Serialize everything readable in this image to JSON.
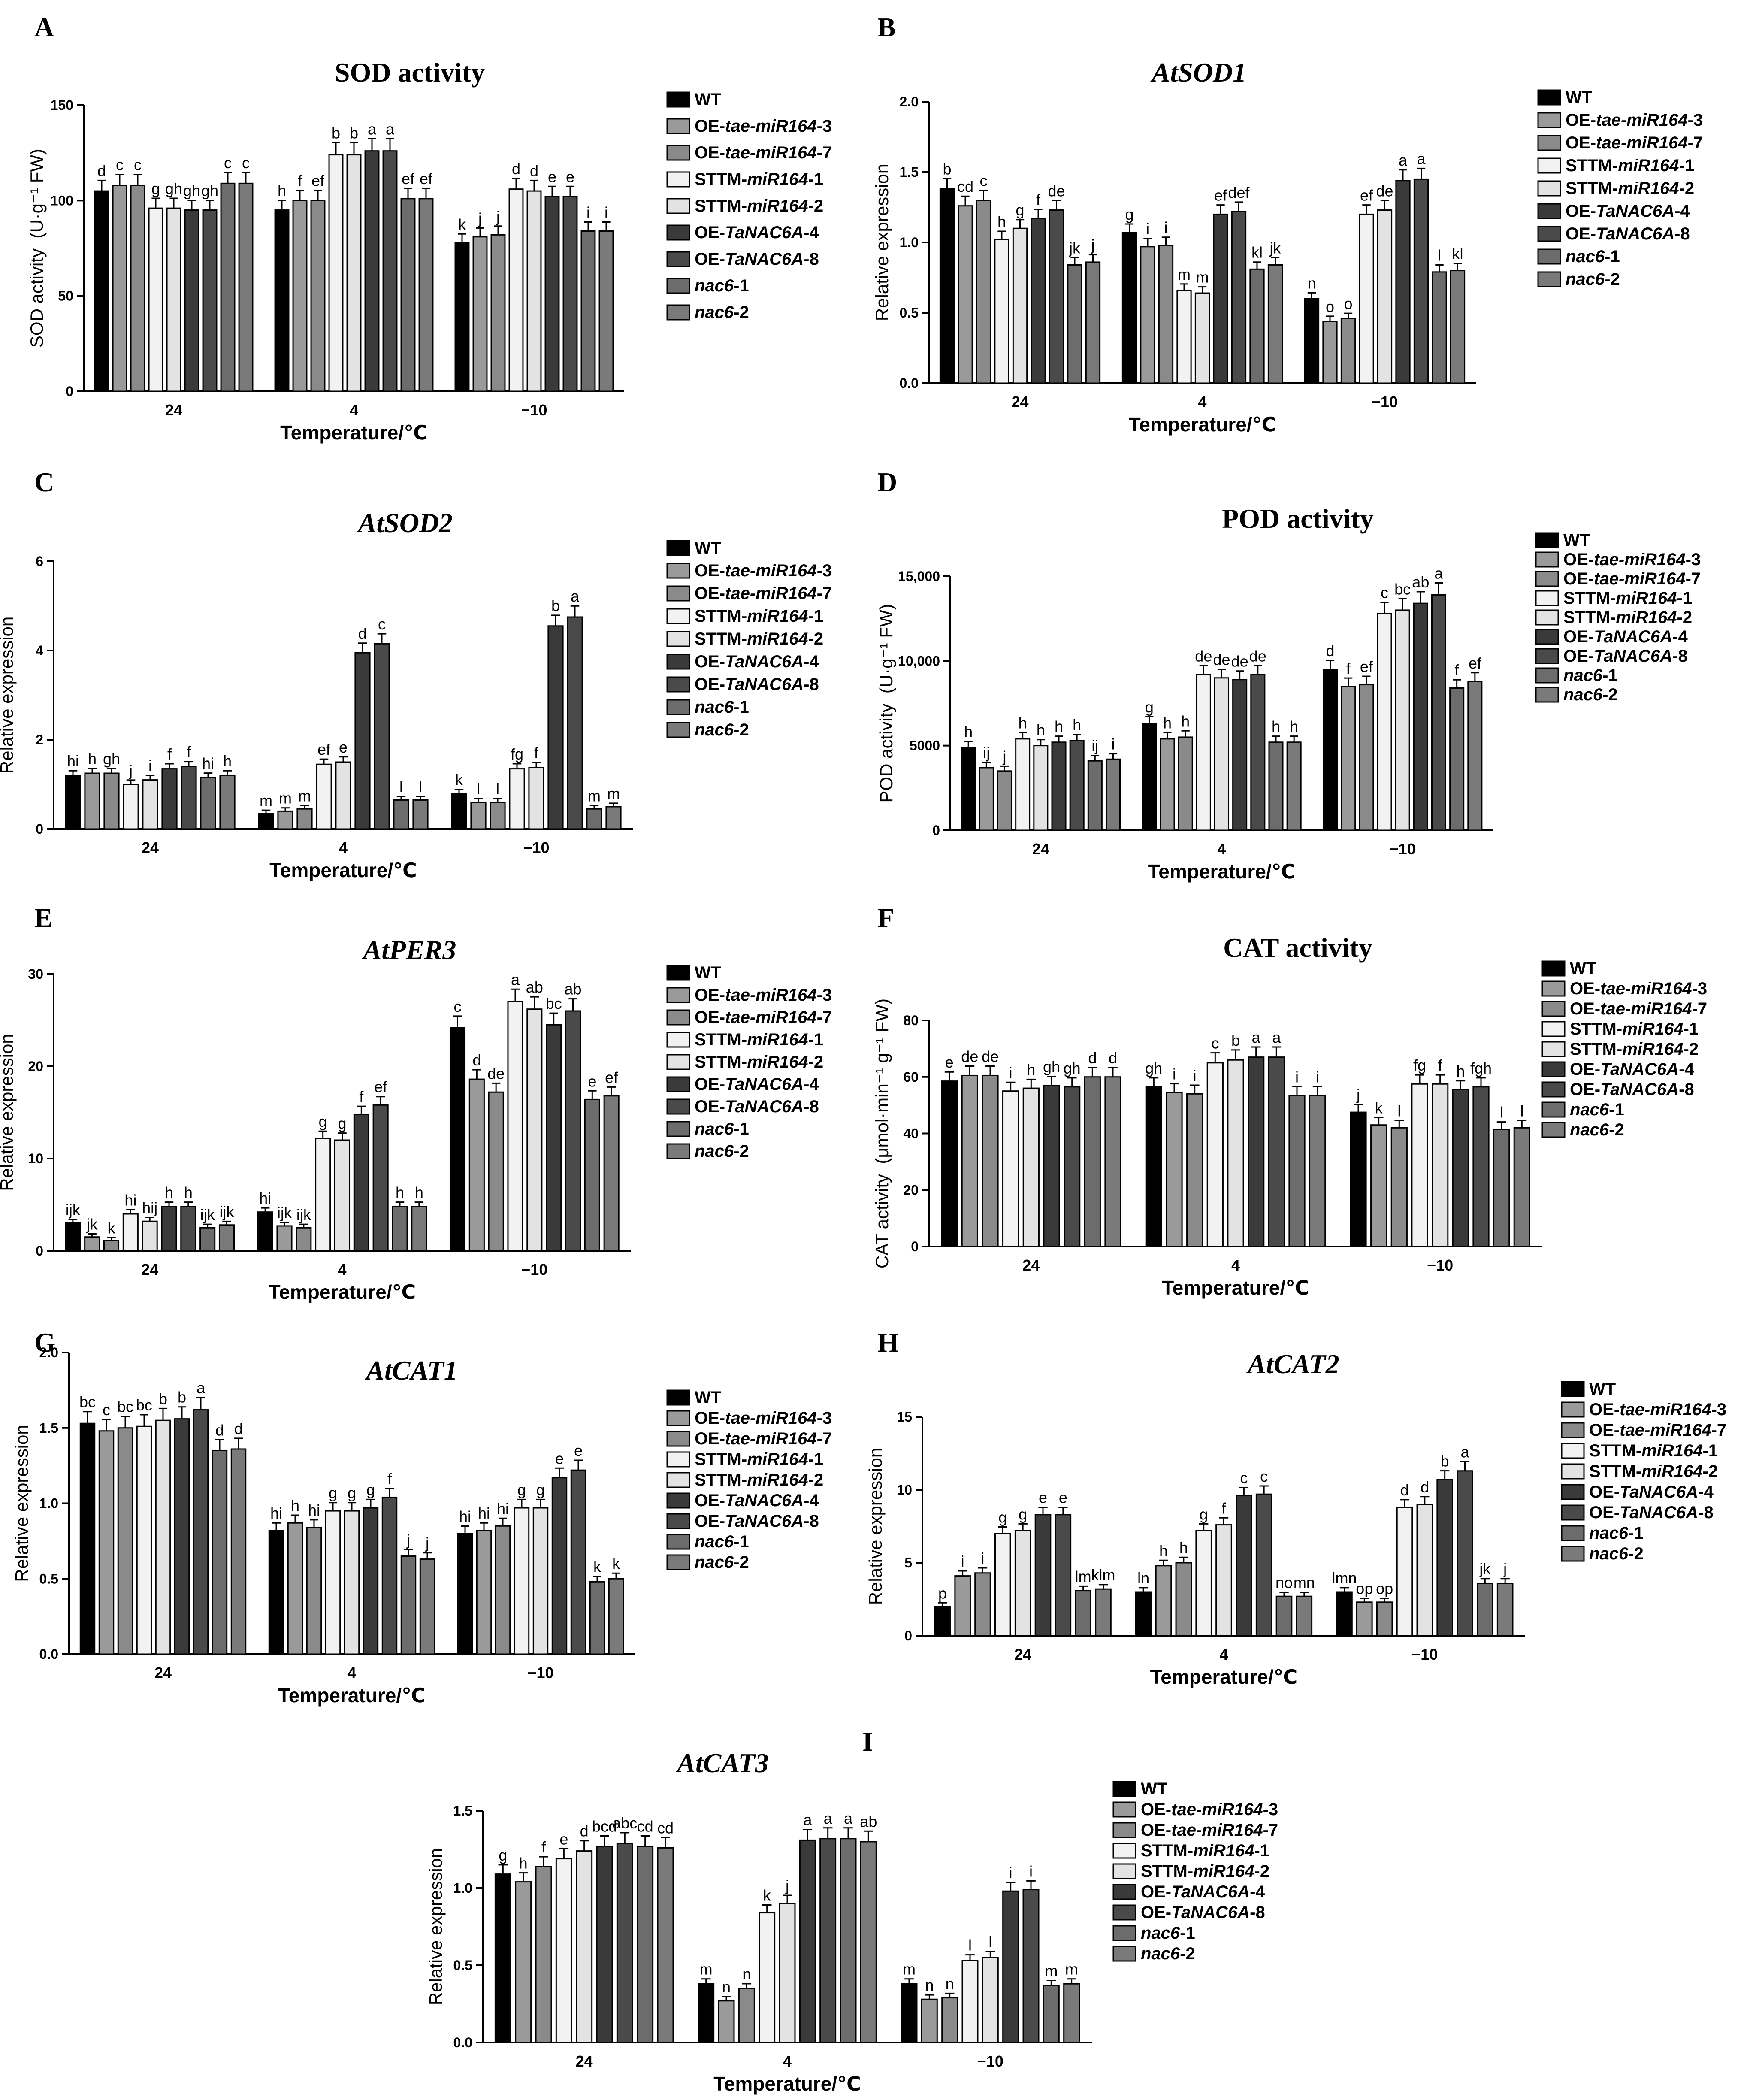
{
  "legend": {
    "items": [
      {
        "parts": [
          {
            "t": "WT",
            "i": false
          }
        ],
        "color": "#000000"
      },
      {
        "parts": [
          {
            "t": "OE-",
            "i": false
          },
          {
            "t": "tae-miR164",
            "i": true
          },
          {
            "t": "-3",
            "i": false
          }
        ],
        "color": "#9a9a9a"
      },
      {
        "parts": [
          {
            "t": "OE-",
            "i": false
          },
          {
            "t": "tae-miR164",
            "i": true
          },
          {
            "t": "-7",
            "i": false
          }
        ],
        "color": "#8a8a8a"
      },
      {
        "parts": [
          {
            "t": "STTM-",
            "i": false
          },
          {
            "t": "miR164",
            "i": true
          },
          {
            "t": "-1",
            "i": false
          }
        ],
        "color": "#f2f2f2"
      },
      {
        "parts": [
          {
            "t": "STTM-",
            "i": false
          },
          {
            "t": "miR164",
            "i": true
          },
          {
            "t": "-2",
            "i": false
          }
        ],
        "color": "#e3e3e3"
      },
      {
        "parts": [
          {
            "t": "OE-",
            "i": false
          },
          {
            "t": "TaNAC6A",
            "i": true
          },
          {
            "t": "-4",
            "i": false
          }
        ],
        "color": "#3a3a3a"
      },
      {
        "parts": [
          {
            "t": "OE-",
            "i": false
          },
          {
            "t": "TaNAC6A",
            "i": true
          },
          {
            "t": "-8",
            "i": false
          }
        ],
        "color": "#4a4a4a"
      },
      {
        "parts": [
          {
            "t": "nac6",
            "i": true
          },
          {
            "t": "-1",
            "i": false
          }
        ],
        "color": "#6c6c6c"
      },
      {
        "parts": [
          {
            "t": "nac6",
            "i": true
          },
          {
            "t": "-2",
            "i": false
          }
        ],
        "color": "#7a7a7a"
      }
    ]
  },
  "chart_data": [
    {
      "panel": "A",
      "type": "bar",
      "title": "SOD activity",
      "title_italic": false,
      "ylabel": "SOD activity  (U·g⁻¹ FW)",
      "xlabel": "Temperature/℃",
      "ylim": [
        0,
        150
      ],
      "yticks": [
        "0",
        "50",
        "100",
        "150"
      ],
      "categories": [
        "24",
        "4",
        "−10"
      ],
      "values": [
        [
          105,
          108,
          108,
          96,
          96,
          95,
          95,
          109,
          109
        ],
        [
          95,
          100,
          100,
          124,
          124,
          126,
          126,
          101,
          101
        ],
        [
          78,
          81,
          82,
          106,
          105,
          102,
          102,
          84,
          84
        ]
      ],
      "letters": [
        [
          "d",
          "c",
          "c",
          "g",
          "gh",
          "gh",
          "gh",
          "c",
          "c"
        ],
        [
          "h",
          "f",
          "ef",
          "b",
          "b",
          "a",
          "a",
          "ef",
          "ef"
        ],
        [
          "k",
          "j",
          "j",
          "d",
          "d",
          "e",
          "e",
          "i",
          "i"
        ]
      ]
    },
    {
      "panel": "B",
      "type": "bar",
      "title": "AtSOD1",
      "title_italic": true,
      "ylabel": "Relative expression",
      "xlabel": "Temperature/℃",
      "ylim": [
        0,
        2
      ],
      "yticks": [
        "0.0",
        "0.5",
        "1.0",
        "1.5",
        "2.0"
      ],
      "categories": [
        "24",
        "4",
        "−10"
      ],
      "values": [
        [
          1.38,
          1.26,
          1.3,
          1.02,
          1.1,
          1.17,
          1.23,
          0.84,
          0.86
        ],
        [
          1.07,
          0.97,
          0.98,
          0.66,
          0.64,
          1.2,
          1.22,
          0.81,
          0.84
        ],
        [
          0.6,
          0.44,
          0.46,
          1.2,
          1.23,
          1.44,
          1.45,
          0.79,
          0.8
        ]
      ],
      "letters": [
        [
          "b",
          "cd",
          "c",
          "h",
          "g",
          "f",
          "de",
          "jk",
          "j"
        ],
        [
          "g",
          "i",
          "i",
          "m",
          "m",
          "ef",
          "def",
          "kl",
          "jk"
        ],
        [
          "n",
          "o",
          "o",
          "ef",
          "de",
          "a",
          "a",
          "l",
          "kl"
        ]
      ]
    },
    {
      "panel": "C",
      "type": "bar",
      "title": "AtSOD2",
      "title_italic": true,
      "ylabel": "Relative expression",
      "xlabel": "Temperature/℃",
      "ylim": [
        0,
        6
      ],
      "yticks": [
        "0",
        "2",
        "4",
        "6"
      ],
      "categories": [
        "24",
        "4",
        "−10"
      ],
      "values": [
        [
          1.2,
          1.25,
          1.25,
          1.0,
          1.1,
          1.35,
          1.4,
          1.15,
          1.2
        ],
        [
          0.35,
          0.4,
          0.45,
          1.45,
          1.5,
          3.95,
          4.15,
          0.65,
          0.65
        ],
        [
          0.8,
          0.6,
          0.6,
          1.35,
          1.38,
          4.55,
          4.75,
          0.45,
          0.5
        ]
      ],
      "letters": [
        [
          "hi",
          "h",
          "gh",
          "j",
          "i",
          "f",
          "f",
          "hi",
          "h"
        ],
        [
          "m",
          "m",
          "m",
          "ef",
          "e",
          "d",
          "c",
          "l",
          "l"
        ],
        [
          "k",
          "l",
          "l",
          "fg",
          "f",
          "b",
          "a",
          "m",
          "m"
        ]
      ]
    },
    {
      "panel": "D",
      "type": "bar",
      "title": "POD activity",
      "title_italic": false,
      "ylabel": "POD activity  (U·g⁻¹ FW)",
      "xlabel": "Temperature/℃",
      "ylim": [
        0,
        15000
      ],
      "yticks": [
        "0",
        "5000",
        "10,000",
        "15,000"
      ],
      "categories": [
        "24",
        "4",
        "−10"
      ],
      "values": [
        [
          4900,
          3700,
          3500,
          5400,
          5000,
          5200,
          5300,
          4100,
          4200
        ],
        [
          6300,
          5400,
          5500,
          9200,
          9000,
          8900,
          9200,
          5200,
          5200
        ],
        [
          9500,
          8500,
          8600,
          12800,
          13000,
          13400,
          13900,
          8400,
          8800
        ]
      ],
      "letters": [
        [
          "h",
          "ij",
          "j",
          "h",
          "h",
          "h",
          "h",
          "ij",
          "i"
        ],
        [
          "g",
          "h",
          "h",
          "de",
          "de",
          "de",
          "de",
          "h",
          "h"
        ],
        [
          "d",
          "f",
          "ef",
          "c",
          "bc",
          "ab",
          "a",
          "f",
          "ef"
        ]
      ]
    },
    {
      "panel": "E",
      "type": "bar",
      "title": "AtPER3",
      "title_italic": true,
      "ylabel": "Relative expression",
      "xlabel": "Temperature/℃",
      "ylim": [
        0,
        30
      ],
      "yticks": [
        "0",
        "10",
        "20",
        "30"
      ],
      "categories": [
        "24",
        "4",
        "−10"
      ],
      "values": [
        [
          3.0,
          1.5,
          1.1,
          4.0,
          3.2,
          4.8,
          4.8,
          2.5,
          2.8
        ],
        [
          4.2,
          2.7,
          2.5,
          12.2,
          12.0,
          14.8,
          15.8,
          4.8,
          4.8
        ],
        [
          24.2,
          18.6,
          17.2,
          27.0,
          26.2,
          24.5,
          26.0,
          16.4,
          16.8
        ]
      ],
      "letters": [
        [
          "ijk",
          "jk",
          "k",
          "hi",
          "hij",
          "h",
          "h",
          "ijk",
          "ijk"
        ],
        [
          "hi",
          "ijk",
          "ijk",
          "g",
          "g",
          "f",
          "ef",
          "h",
          "h"
        ],
        [
          "c",
          "d",
          "de",
          "a",
          "ab",
          "bc",
          "ab",
          "e",
          "ef"
        ]
      ]
    },
    {
      "panel": "F",
      "type": "bar",
      "title": "CAT activity",
      "title_italic": false,
      "ylabel": "CAT activity  (μmol·min⁻¹ g⁻¹ FW)",
      "xlabel": "Temperature/℃",
      "ylim": [
        0,
        80
      ],
      "yticks": [
        "0",
        "20",
        "40",
        "60",
        "80"
      ],
      "categories": [
        "24",
        "4",
        "−10"
      ],
      "values": [
        [
          58.5,
          60.5,
          60.5,
          55,
          56,
          57,
          56.5,
          60,
          60
        ],
        [
          56.5,
          54.5,
          54,
          65,
          66,
          67,
          67,
          53.5,
          53.5
        ],
        [
          47.5,
          43,
          42,
          57.5,
          57.5,
          55.5,
          56.5,
          41.5,
          42
        ]
      ],
      "letters": [
        [
          "e",
          "de",
          "de",
          "i",
          "h",
          "gh",
          "gh",
          "d",
          "d"
        ],
        [
          "gh",
          "i",
          "i",
          "c",
          "b",
          "a",
          "a",
          "i",
          "i"
        ],
        [
          "j",
          "k",
          "l",
          "fg",
          "f",
          "h",
          "fgh",
          "l",
          "l"
        ]
      ]
    },
    {
      "panel": "G",
      "type": "bar",
      "title": "AtCAT1",
      "title_italic": true,
      "ylabel": "Relative expression",
      "xlabel": "Temperature/℃",
      "ylim": [
        0,
        2
      ],
      "yticks": [
        "0.0",
        "0.5",
        "1.0",
        "1.5",
        "2.0"
      ],
      "categories": [
        "24",
        "4",
        "−10"
      ],
      "values": [
        [
          1.53,
          1.48,
          1.5,
          1.51,
          1.55,
          1.56,
          1.62,
          1.35,
          1.36
        ],
        [
          0.82,
          0.87,
          0.84,
          0.95,
          0.95,
          0.97,
          1.04,
          0.65,
          0.63
        ],
        [
          0.8,
          0.82,
          0.85,
          0.97,
          0.97,
          1.17,
          1.22,
          0.48,
          0.5
        ]
      ],
      "letters": [
        [
          "bc",
          "c",
          "bc",
          "bc",
          "b",
          "b",
          "a",
          "d",
          "d"
        ],
        [
          "hi",
          "h",
          "hi",
          "g",
          "g",
          "g",
          "f",
          "j",
          "j"
        ],
        [
          "hi",
          "hi",
          "hi",
          "g",
          "g",
          "e",
          "e",
          "k",
          "k"
        ]
      ]
    },
    {
      "panel": "H",
      "type": "bar",
      "title": "AtCAT2",
      "title_italic": true,
      "ylabel": "Relative expression",
      "xlabel": "Temperature/℃",
      "ylim": [
        0,
        15
      ],
      "yticks": [
        "0",
        "5",
        "10",
        "15"
      ],
      "categories": [
        "24",
        "4",
        "−10"
      ],
      "values": [
        [
          2.0,
          4.1,
          4.3,
          7.0,
          7.2,
          8.3,
          8.3,
          3.1,
          3.2
        ],
        [
          3.0,
          4.8,
          5.0,
          7.2,
          7.6,
          9.6,
          9.7,
          2.7,
          2.7
        ],
        [
          3.0,
          2.3,
          2.3,
          8.8,
          9.0,
          10.7,
          11.3,
          3.6,
          3.6
        ]
      ],
      "letters": [
        [
          "p",
          "i",
          "i",
          "g",
          "g",
          "e",
          "e",
          "lm",
          "klm"
        ],
        [
          "ln",
          "h",
          "h",
          "g",
          "f",
          "c",
          "c",
          "no",
          "mn"
        ],
        [
          "lmn",
          "op",
          "op",
          "d",
          "d",
          "b",
          "a",
          "jk",
          "j"
        ]
      ]
    },
    {
      "panel": "I",
      "type": "bar",
      "title": "AtCAT3",
      "title_italic": true,
      "ylabel": "Relative expression",
      "xlabel": "Temperature/℃",
      "ylim": [
        0,
        1.5
      ],
      "yticks": [
        "0.0",
        "0.5",
        "1.0",
        "1.5"
      ],
      "categories": [
        "24",
        "4",
        "−10"
      ],
      "values": [
        [
          1.09,
          1.04,
          1.14,
          1.19,
          1.24,
          1.27,
          1.29,
          1.27,
          1.26
        ],
        [
          0.38,
          0.27,
          0.35,
          0.84,
          0.9,
          1.31,
          1.32,
          1.32,
          1.3
        ],
        [
          0.38,
          0.28,
          0.29,
          0.53,
          0.55,
          0.98,
          0.99,
          0.37,
          0.38
        ]
      ],
      "letters": [
        [
          "g",
          "h",
          "f",
          "e",
          "d",
          "bcd",
          "abc",
          "cd",
          "cd"
        ],
        [
          "m",
          "n",
          "n",
          "k",
          "j",
          "a",
          "a",
          "a",
          "ab"
        ],
        [
          "m",
          "n",
          "n",
          "l",
          "l",
          "i",
          "i",
          "m",
          "m"
        ]
      ]
    }
  ]
}
